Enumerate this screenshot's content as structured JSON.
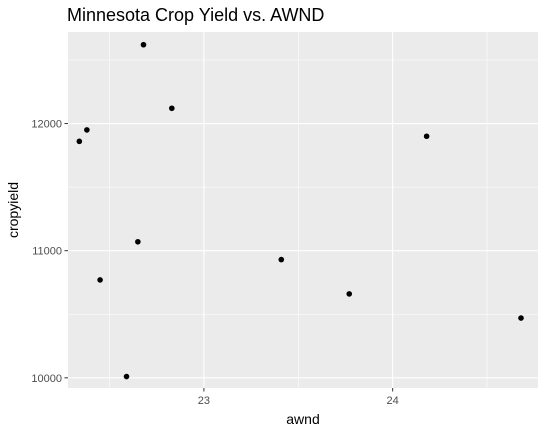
{
  "chart_data": {
    "type": "scatter",
    "title": "Minnesota Crop Yield vs. AWND",
    "xlabel": "awnd",
    "ylabel": "cropyield",
    "xlim": [
      22.28,
      24.77
    ],
    "ylim": [
      9920,
      12720
    ],
    "x_ticks": [
      23,
      24
    ],
    "x_tick_labels": [
      "23",
      "24"
    ],
    "x_minor_ticks": [
      22.5,
      23.5,
      24.5
    ],
    "y_ticks": [
      10000,
      11000,
      12000
    ],
    "y_tick_labels": [
      "10000",
      "11000",
      "12000"
    ],
    "y_minor_ticks": [
      10500,
      11500,
      12500
    ],
    "grid": true,
    "legend": "none",
    "colors": {
      "panel": "#ebebeb",
      "grid": "#ffffff",
      "point": "#000000"
    },
    "points": [
      {
        "x": 22.34,
        "y": 11860
      },
      {
        "x": 22.38,
        "y": 11950
      },
      {
        "x": 22.45,
        "y": 10770
      },
      {
        "x": 22.59,
        "y": 10010
      },
      {
        "x": 22.65,
        "y": 11070
      },
      {
        "x": 22.68,
        "y": 12620
      },
      {
        "x": 22.83,
        "y": 12120
      },
      {
        "x": 23.41,
        "y": 10930
      },
      {
        "x": 23.77,
        "y": 10660
      },
      {
        "x": 24.18,
        "y": 11900
      },
      {
        "x": 24.68,
        "y": 10470
      }
    ]
  }
}
